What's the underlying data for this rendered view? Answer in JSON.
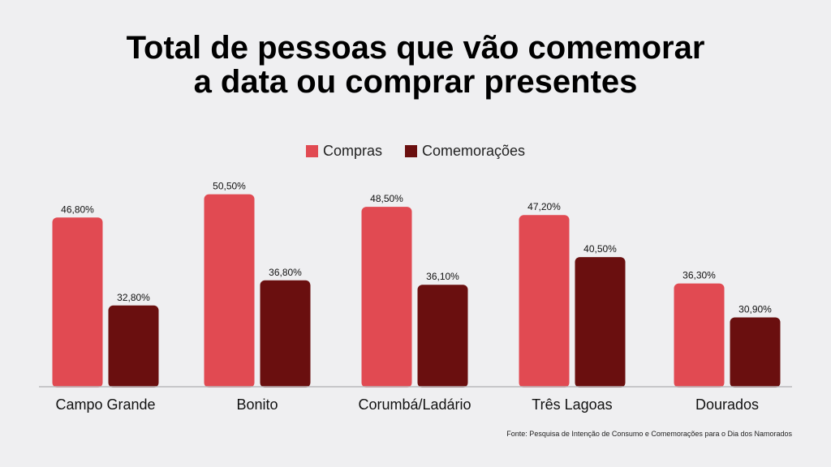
{
  "title_lines": [
    "Total de pessoas que vão comemorar",
    "a data ou comprar presentes"
  ],
  "source": "Fonte: Pesquisa de Intenção de Consumo e Comemorações para o Dia dos Namorados",
  "chart_data": {
    "type": "bar",
    "title": "Total de pessoas que vão comemorar a data ou comprar presentes",
    "categories": [
      "Campo Grande",
      "Bonito",
      "Corumbá/Ladário",
      "Três Lagoas",
      "Dourados"
    ],
    "series": [
      {
        "name": "Compras",
        "color": "#e14a52",
        "values": [
          46.8,
          50.5,
          48.5,
          47.2,
          36.3
        ],
        "labels": [
          "46,80%",
          "50,50%",
          "48,50%",
          "47,20%",
          "36,30%"
        ]
      },
      {
        "name": "Comemorações",
        "color": "#6a0f0f",
        "values": [
          32.8,
          36.8,
          36.1,
          40.5,
          30.9
        ],
        "labels": [
          "32,80%",
          "36,80%",
          "36,10%",
          "40,50%",
          "30,90%"
        ]
      }
    ],
    "ylim": [
      20,
      52
    ],
    "grid": false,
    "legend": "top-center"
  }
}
